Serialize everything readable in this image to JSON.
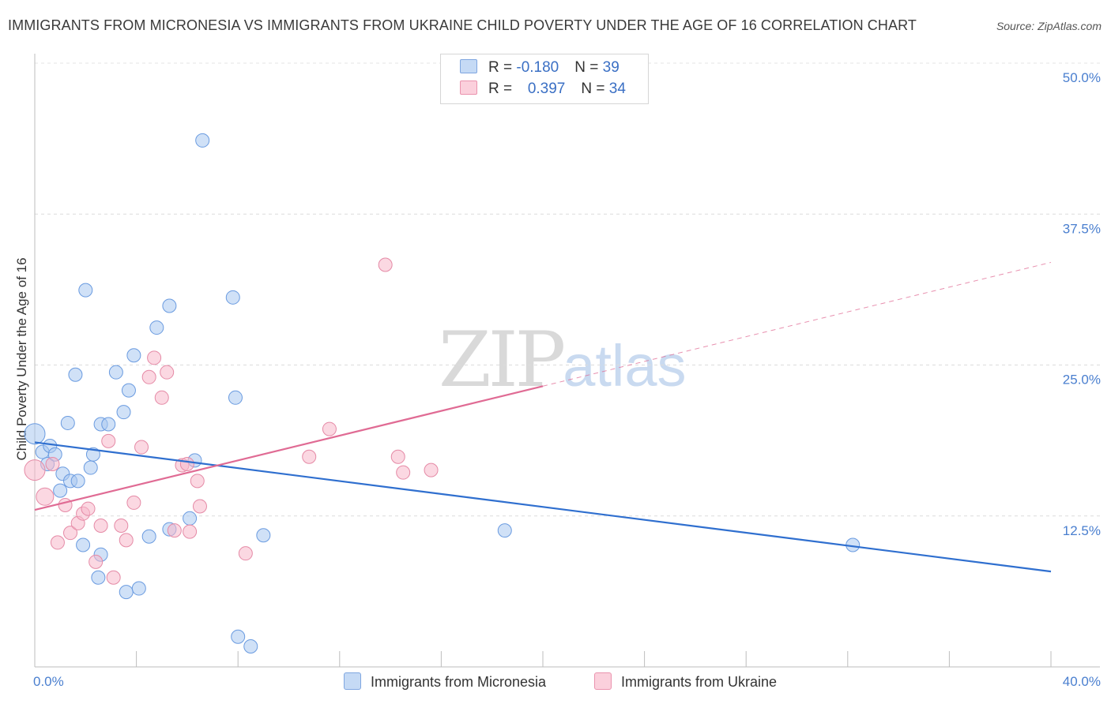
{
  "title": "IMMIGRANTS FROM MICRONESIA VS IMMIGRANTS FROM UKRAINE CHILD POVERTY UNDER THE AGE OF 16 CORRELATION CHART",
  "source": "Source: ZipAtlas.com",
  "watermark": {
    "zip": "ZIP",
    "atlas": "atlas"
  },
  "legend": {
    "rows": [
      {
        "r_label": "R = ",
        "r_value": "-0.180",
        "n_label": "N = ",
        "n_value": "39",
        "color": "#a9c8f0"
      },
      {
        "r_label": "R = ",
        "r_value": "0.397",
        "n_label": "N = ",
        "n_value": "34",
        "color": "#f7b8cb"
      }
    ]
  },
  "bottom_legend": [
    {
      "label": "Immigrants from Micronesia",
      "color": "#a9c8f0"
    },
    {
      "label": "Immigrants from Ukraine",
      "color": "#f7b8cb"
    }
  ],
  "chart_data": {
    "type": "scatter",
    "title": "IMMIGRANTS FROM MICRONESIA VS IMMIGRANTS FROM UKRAINE CHILD POVERTY UNDER THE AGE OF 16 CORRELATION CHART",
    "xlabel": "",
    "ylabel": "Child Poverty Under the Age of 16",
    "xlim": [
      0,
      40
    ],
    "ylim": [
      0,
      50
    ],
    "x_ticks": [
      "0.0%",
      "40.0%"
    ],
    "y_ticks": [
      {
        "value": 12.5,
        "label": "12.5%"
      },
      {
        "value": 25.0,
        "label": "25.0%"
      },
      {
        "value": 37.5,
        "label": "37.5%"
      },
      {
        "value": 50.0,
        "label": "50.0%"
      }
    ],
    "grid": true,
    "series": [
      {
        "name": "Immigrants from Micronesia",
        "color": "#a9c8f0",
        "stroke": "#6a9be0",
        "trend": {
          "x": [
            0,
            40
          ],
          "y": [
            18.6,
            7.9
          ],
          "color": "#2f6fcf"
        },
        "points": [
          [
            0.0,
            19.3
          ],
          [
            0.3,
            17.8
          ],
          [
            0.5,
            16.8
          ],
          [
            0.6,
            18.3
          ],
          [
            0.8,
            17.6
          ],
          [
            1.0,
            14.6
          ],
          [
            1.1,
            16.0
          ],
          [
            1.3,
            20.2
          ],
          [
            1.4,
            15.4
          ],
          [
            1.7,
            15.4
          ],
          [
            1.6,
            24.2
          ],
          [
            1.9,
            10.1
          ],
          [
            2.0,
            31.2
          ],
          [
            2.2,
            16.5
          ],
          [
            2.3,
            17.6
          ],
          [
            2.5,
            7.4
          ],
          [
            2.6,
            9.3
          ],
          [
            2.6,
            20.1
          ],
          [
            2.9,
            20.1
          ],
          [
            3.2,
            24.4
          ],
          [
            3.5,
            21.1
          ],
          [
            3.7,
            22.9
          ],
          [
            3.6,
            6.2
          ],
          [
            3.9,
            25.8
          ],
          [
            4.1,
            6.5
          ],
          [
            4.5,
            10.8
          ],
          [
            4.8,
            28.1
          ],
          [
            5.3,
            29.9
          ],
          [
            5.3,
            11.4
          ],
          [
            6.1,
            12.3
          ],
          [
            6.3,
            17.1
          ],
          [
            6.6,
            43.6
          ],
          [
            7.8,
            30.6
          ],
          [
            7.9,
            22.3
          ],
          [
            8.0,
            2.5
          ],
          [
            8.5,
            1.7
          ],
          [
            9.0,
            10.9
          ],
          [
            18.5,
            11.3
          ],
          [
            32.2,
            10.1
          ]
        ]
      },
      {
        "name": "Immigrants from Ukraine",
        "color": "#f7b8cb",
        "stroke": "#e58aa6",
        "trend": {
          "x": [
            0,
            40
          ],
          "y": [
            13.0,
            33.5
          ],
          "solid_until": 20.0,
          "color": "#e06b94"
        },
        "points": [
          [
            0.0,
            16.3
          ],
          [
            0.4,
            14.1
          ],
          [
            0.7,
            16.8
          ],
          [
            0.9,
            10.3
          ],
          [
            1.2,
            13.4
          ],
          [
            1.4,
            11.1
          ],
          [
            1.7,
            11.9
          ],
          [
            1.9,
            12.7
          ],
          [
            2.1,
            13.1
          ],
          [
            2.4,
            8.7
          ],
          [
            2.6,
            11.7
          ],
          [
            2.9,
            18.7
          ],
          [
            3.1,
            7.4
          ],
          [
            3.4,
            11.7
          ],
          [
            3.6,
            10.5
          ],
          [
            3.9,
            13.6
          ],
          [
            4.2,
            18.2
          ],
          [
            4.5,
            24.0
          ],
          [
            4.7,
            25.6
          ],
          [
            5.0,
            22.3
          ],
          [
            5.2,
            24.4
          ],
          [
            5.5,
            11.3
          ],
          [
            5.8,
            16.7
          ],
          [
            6.0,
            16.8
          ],
          [
            6.4,
            15.4
          ],
          [
            6.5,
            13.3
          ],
          [
            6.1,
            11.2
          ],
          [
            8.3,
            9.4
          ],
          [
            10.8,
            17.4
          ],
          [
            11.6,
            19.7
          ],
          [
            13.8,
            33.3
          ],
          [
            14.3,
            17.4
          ],
          [
            14.5,
            16.1
          ],
          [
            15.6,
            16.3
          ]
        ]
      }
    ]
  }
}
